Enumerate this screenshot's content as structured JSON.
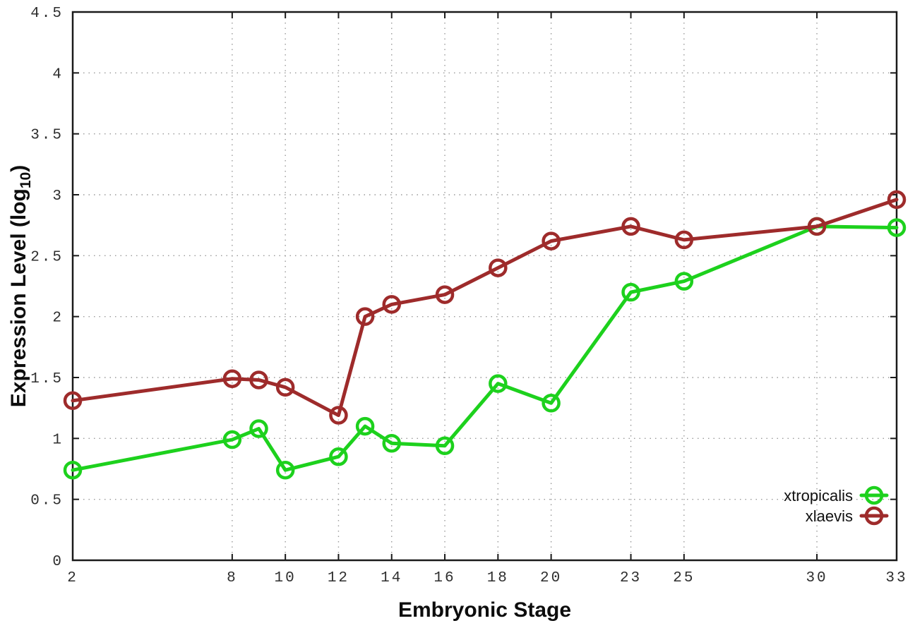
{
  "figure": {
    "background": "#ffffff",
    "border_color": "#1a1a1a",
    "grid_color": "#9a9a9a",
    "tick_label_color": "#2e2e2e",
    "axis_label_color": "#0d0d0d",
    "legend_text_color": "#111111"
  },
  "chart_data": {
    "type": "line",
    "title": "",
    "xlabel": "Embryonic Stage",
    "ylabel_parts": {
      "base": "Expression Level (log",
      "subscript": "10",
      "close": ")"
    },
    "xlim": [
      2,
      33
    ],
    "ylim": [
      0,
      4.5
    ],
    "xticks": [
      2,
      8,
      10,
      12,
      14,
      16,
      18,
      20,
      23,
      25,
      30,
      33
    ],
    "yticks": [
      0,
      0.5,
      1,
      1.5,
      2,
      2.5,
      3,
      3.5,
      4,
      4.5
    ],
    "grid": true,
    "legend_position": "inside-bottom-right",
    "marker": "open-circle",
    "x": [
      2,
      8,
      9,
      10,
      12,
      13,
      14,
      16,
      18,
      20,
      23,
      25,
      30,
      33
    ],
    "series": [
      {
        "name": "xtropicalis",
        "color": "#1dd11d",
        "values": [
          0.74,
          0.99,
          1.08,
          0.74,
          0.85,
          1.1,
          0.96,
          0.94,
          1.45,
          1.29,
          2.2,
          2.29,
          2.74,
          2.73
        ]
      },
      {
        "name": "xlaevis",
        "color": "#9e2b2b",
        "values": [
          1.31,
          1.49,
          1.48,
          1.42,
          1.19,
          2.0,
          2.1,
          2.18,
          2.4,
          2.62,
          2.74,
          2.63,
          2.74,
          2.96
        ]
      }
    ]
  }
}
